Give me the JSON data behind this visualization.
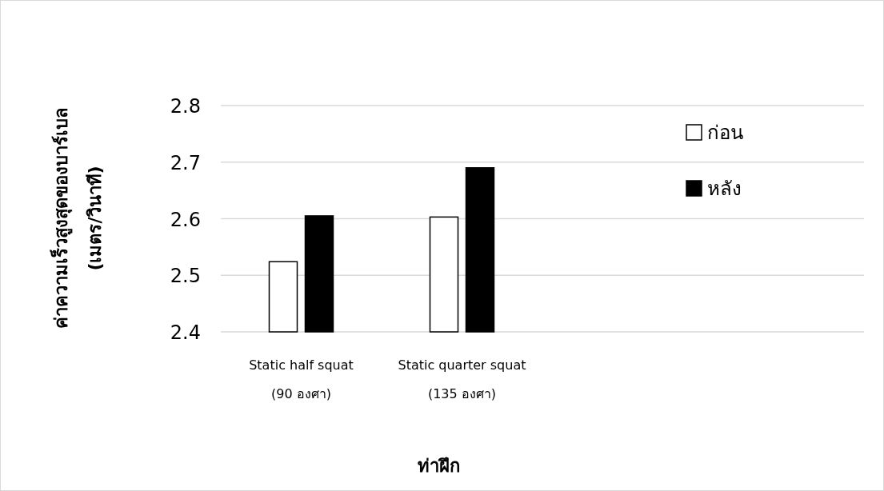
{
  "chart_data": {
    "type": "bar",
    "categories": [
      "Static half squat\n(90 องศา)",
      "Static quarter squat\n(135 องศา)",
      null,
      null
    ],
    "series": [
      {
        "name": "ก่อน",
        "color": "#ffffff",
        "values": [
          2.524,
          2.603,
          null,
          null
        ]
      },
      {
        "name": "หลัง",
        "color": "#000000",
        "values": [
          2.605,
          2.69,
          null,
          null
        ]
      }
    ],
    "xlabel": "ท่าฝึก",
    "ylabel": "ค่าความเร็วสูงสุดของบาร์เบล\n(เมตร/วินาที)",
    "ylim": [
      2.4,
      2.8
    ],
    "yticks": [
      2.4,
      2.5,
      2.6,
      2.7,
      2.8
    ],
    "grid": "y",
    "legend": "top right"
  }
}
